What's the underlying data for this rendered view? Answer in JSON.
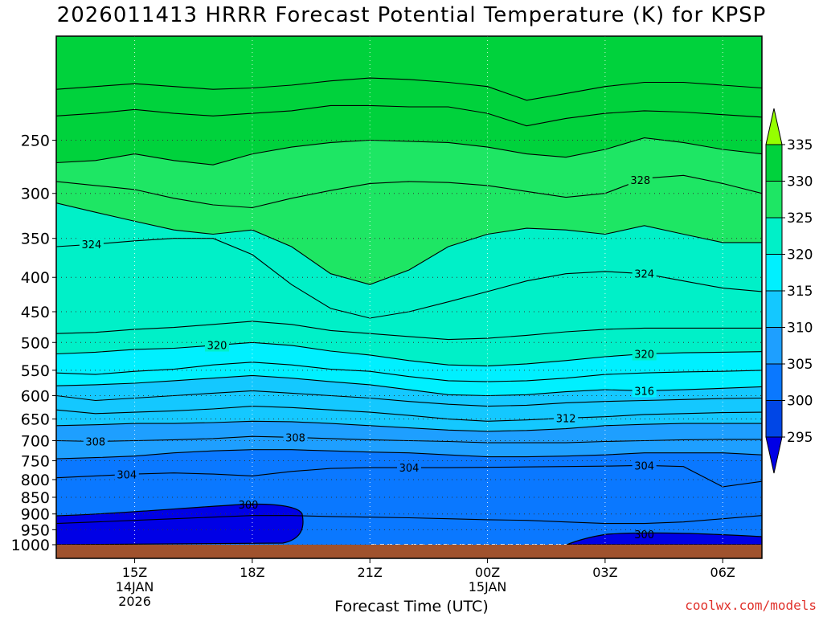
{
  "title": "2026011413 HRRR Forecast Potential Temperature (K) for KPSP",
  "credit": "coolwx.com/models",
  "chart_data": {
    "type": "contour",
    "title": "2026011413 HRRR Forecast Potential Temperature (K) for KPSP",
    "xlabel": "Forecast Time (UTC)",
    "ylabel": "",
    "x_range_hours_utc_from_14JAN": [
      13,
      31
    ],
    "y_range_hPa": [
      1000,
      175
    ],
    "y_scale": "log",
    "y_ticks": [
      250,
      300,
      350,
      400,
      450,
      500,
      550,
      600,
      650,
      700,
      750,
      800,
      850,
      900,
      950,
      1000
    ],
    "x_ticks": [
      {
        "hour": 15,
        "label": [
          "15Z",
          "14JAN",
          "2026"
        ]
      },
      {
        "hour": 18,
        "label": [
          "18Z"
        ]
      },
      {
        "hour": 21,
        "label": [
          "21Z"
        ]
      },
      {
        "hour": 24,
        "label": [
          "00Z",
          "15JAN"
        ]
      },
      {
        "hour": 27,
        "label": [
          "03Z"
        ]
      },
      {
        "hour": 30,
        "label": [
          "06Z"
        ]
      }
    ],
    "grid": true,
    "colorbar": {
      "levels": [
        295,
        300,
        305,
        310,
        315,
        320,
        325,
        330,
        335
      ],
      "colors": [
        "#0000e6",
        "#0046e6",
        "#0a78ff",
        "#1e9fff",
        "#14c8ff",
        "#00f0ff",
        "#00f0c8",
        "#1ee664",
        "#00d23c",
        "#96ff00"
      ]
    },
    "hours": [
      13,
      14,
      15,
      16,
      17,
      18,
      19,
      20,
      21,
      22,
      23,
      24,
      25,
      26,
      27,
      28,
      29,
      30,
      31
    ],
    "contours": [
      {
        "level": 300,
        "label": "300",
        "p": [
          null,
          null,
          null,
          null,
          null,
          null,
          null,
          null,
          null,
          null,
          null,
          null,
          null,
          null,
          null,
          null,
          null,
          null,
          null
        ]
      },
      {
        "level": 302,
        "p": [
          930,
          925,
          920,
          915,
          910,
          905,
          905,
          908,
          910,
          912,
          915,
          918,
          920,
          925,
          930,
          930,
          925,
          915,
          905
        ]
      },
      {
        "level": 304,
        "label": "304",
        "p": [
          795,
          790,
          785,
          782,
          785,
          790,
          778,
          770,
          768,
          768,
          768,
          767,
          766,
          765,
          764,
          762,
          765,
          820,
          805
        ]
      },
      {
        "level": 306,
        "p": [
          745,
          742,
          738,
          730,
          725,
          722,
          722,
          725,
          728,
          730,
          735,
          740,
          740,
          738,
          735,
          730,
          730,
          730,
          735
        ]
      },
      {
        "level": 308,
        "label": "308",
        "p": [
          700,
          702,
          700,
          698,
          695,
          690,
          692,
          695,
          698,
          700,
          702,
          705,
          705,
          705,
          702,
          700,
          698,
          697,
          697
        ]
      },
      {
        "level": 310,
        "p": [
          665,
          663,
          660,
          660,
          658,
          655,
          656,
          660,
          665,
          670,
          675,
          678,
          676,
          672,
          665,
          662,
          660,
          660,
          660
        ]
      },
      {
        "level": 312,
        "label": "312",
        "p": [
          630,
          638,
          635,
          632,
          628,
          622,
          625,
          630,
          635,
          642,
          650,
          655,
          652,
          648,
          645,
          640,
          638,
          636,
          635
        ]
      },
      {
        "level": 314,
        "p": [
          600,
          610,
          605,
          600,
          595,
          590,
          595,
          600,
          605,
          612,
          618,
          622,
          620,
          615,
          612,
          610,
          608,
          606,
          605
        ]
      },
      {
        "level": 316,
        "label": "316",
        "p": [
          580,
          578,
          575,
          570,
          565,
          560,
          565,
          572,
          578,
          588,
          598,
          600,
          598,
          592,
          588,
          590,
          588,
          585,
          582
        ]
      },
      {
        "level": 318,
        "p": [
          555,
          558,
          552,
          548,
          540,
          535,
          540,
          548,
          552,
          562,
          570,
          572,
          570,
          565,
          558,
          555,
          553,
          552,
          550
        ]
      },
      {
        "level": 320,
        "label": "320",
        "p": [
          520,
          517,
          512,
          510,
          505,
          500,
          505,
          515,
          522,
          532,
          540,
          542,
          538,
          532,
          525,
          520,
          518,
          517,
          516
        ]
      },
      {
        "level": 322,
        "p": [
          485,
          483,
          478,
          475,
          470,
          465,
          470,
          480,
          485,
          490,
          495,
          493,
          488,
          482,
          478,
          476,
          476,
          476,
          476
        ]
      },
      {
        "level": 324,
        "label": "324",
        "p": [
          360,
          357,
          353,
          350,
          350,
          370,
          410,
          445,
          460,
          450,
          435,
          420,
          405,
          395,
          392,
          395,
          405,
          415,
          420
        ]
      },
      {
        "level": 326,
        "p": [
          310,
          320,
          330,
          340,
          345,
          340,
          360,
          395,
          410,
          390,
          360,
          345,
          338,
          340,
          345,
          335,
          345,
          355,
          355
        ]
      },
      {
        "level": 328,
        "label": "328",
        "p": [
          288,
          292,
          296,
          305,
          312,
          315,
          305,
          297,
          290,
          288,
          289,
          292,
          298,
          304,
          300,
          285,
          282,
          290,
          300
        ]
      },
      {
        "level": 330,
        "p": [
          270,
          268,
          262,
          268,
          272,
          262,
          256,
          252,
          250,
          251,
          252,
          256,
          262,
          265,
          258,
          248,
          252,
          258,
          262
        ]
      },
      {
        "level": 332,
        "p": [
          230,
          228,
          225,
          228,
          230,
          228,
          226,
          222,
          222,
          223,
          223,
          228,
          238,
          232,
          228,
          226,
          227,
          229,
          231
        ]
      },
      {
        "level": 334,
        "p": [
          210,
          208,
          206,
          208,
          210,
          209,
          207,
          204,
          202,
          203,
          205,
          208,
          218,
          213,
          208,
          205,
          205,
          207,
          209
        ]
      }
    ]
  }
}
